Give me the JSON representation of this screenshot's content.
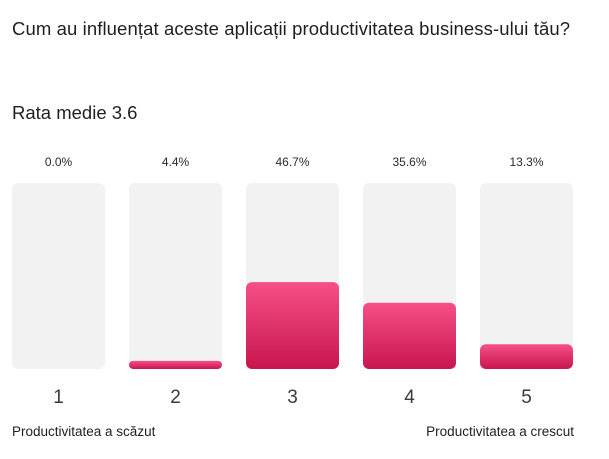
{
  "question": "Cum au influențat aceste aplicații productivitatea business-ului tău?",
  "average": {
    "label": "Rata medie",
    "value": "3.6"
  },
  "scale": {
    "low_label": "Productivitatea a scăzut",
    "high_label": "Productivitatea a crescut"
  },
  "colors": {
    "track": "#f2f2f2",
    "bar_top": "#f64f86",
    "bar_bottom": "#c8164f"
  },
  "chart_data": {
    "type": "bar",
    "categories": [
      "1",
      "2",
      "3",
      "4",
      "5"
    ],
    "values": [
      0.0,
      4.4,
      46.7,
      35.6,
      13.3
    ],
    "value_labels": [
      "0.0%",
      "4.4%",
      "46.7%",
      "35.6%",
      "13.3%"
    ],
    "ylim": [
      0,
      100
    ],
    "title": "",
    "xlabel": "",
    "ylabel": "",
    "grid": false
  }
}
